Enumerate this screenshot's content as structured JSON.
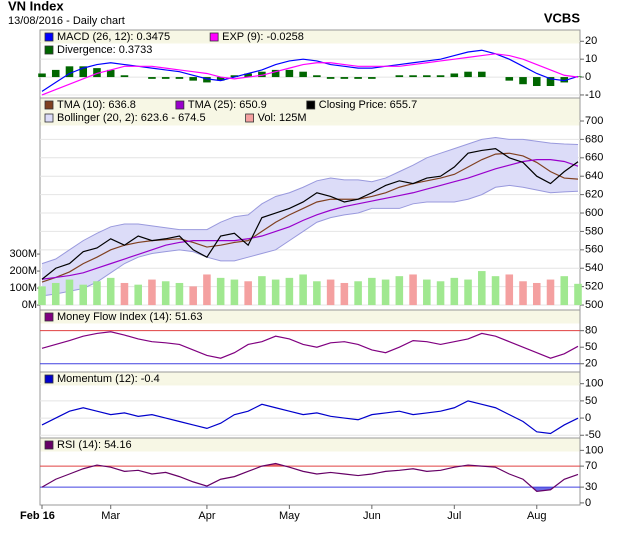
{
  "header": {
    "title": "VN Index",
    "subtitle": "13/08/2016 - Daily chart",
    "brand": "VCBS"
  },
  "chart_data": [
    {
      "type": "line",
      "ylim": [
        -11.7,
        26.3
      ],
      "yticks": [
        20,
        10,
        0,
        -10
      ],
      "grid": true,
      "series": [
        {
          "name": "MACD (26, 12): 0.3475",
          "kind": "line",
          "color": "#0000ff",
          "values": [
            -8,
            -3,
            2,
            5,
            7,
            8,
            7,
            6,
            5,
            4,
            3,
            1,
            -1,
            -2,
            0,
            2,
            4,
            7,
            9,
            10,
            9,
            7,
            6,
            5,
            5,
            6,
            7,
            8,
            9,
            10,
            12,
            14,
            15,
            13,
            10,
            6,
            2,
            -1,
            -2,
            0.3475
          ]
        },
        {
          "name": "EXP (9): -0.0258",
          "kind": "line",
          "color": "#ff00ff",
          "values": [
            -10,
            -7,
            -4,
            -1,
            2,
            4,
            6,
            6,
            6,
            5,
            4,
            3,
            2,
            0,
            -1,
            0,
            1,
            3,
            5,
            7,
            8,
            8,
            7,
            6,
            6,
            6,
            6,
            7,
            8,
            9,
            10,
            11,
            12,
            13,
            12,
            10,
            7,
            4,
            1,
            -0.0258
          ]
        },
        {
          "name": "Divergence: 0.3733",
          "kind": "bar",
          "color": "#006600",
          "values": [
            2,
            4,
            6,
            6,
            5,
            4,
            1,
            0,
            -1,
            -1,
            -1,
            -2,
            -3,
            -2,
            1,
            2,
            3,
            4,
            4,
            3,
            1,
            -1,
            -1,
            -1,
            -1,
            0,
            1,
            1,
            1,
            1,
            2,
            3,
            3,
            0,
            -2,
            -4,
            -5,
            -5,
            -3,
            0.3733
          ]
        }
      ]
    },
    {
      "type": "line",
      "ylim": [
        494.6,
        725
      ],
      "yticks": [
        500,
        520,
        540,
        560,
        580,
        600,
        620,
        640,
        660,
        680,
        700
      ],
      "grid": true,
      "y2lim": [
        -29000000,
        1218000000
      ],
      "y2ticks": [
        {
          "value": 300000000,
          "label": "300M"
        },
        {
          "value": 200000000,
          "label": "200M"
        },
        {
          "value": 100000000,
          "label": "100M"
        },
        {
          "value": 0,
          "label": "0M"
        }
      ],
      "series": [
        {
          "name": "TMA (10): 636.8",
          "kind": "line",
          "color": "#804020",
          "values": [
            525,
            530,
            536,
            545,
            552,
            560,
            565,
            568,
            570,
            571,
            572,
            568,
            563,
            565,
            568,
            570,
            580,
            590,
            598,
            605,
            612,
            615,
            615,
            615,
            618,
            622,
            628,
            632,
            635,
            638,
            642,
            650,
            658,
            664,
            665,
            662,
            655,
            645,
            638,
            636.8
          ]
        },
        {
          "name": "TMA (25): 650.9",
          "kind": "line",
          "color": "#9900cc",
          "values": [
            528,
            530,
            532,
            535,
            540,
            545,
            550,
            555,
            560,
            565,
            568,
            570,
            570,
            570,
            570,
            572,
            575,
            580,
            585,
            592,
            598,
            603,
            607,
            610,
            613,
            616,
            619,
            622,
            626,
            630,
            634,
            638,
            643,
            648,
            652,
            656,
            658,
            658,
            656,
            650.9
          ]
        },
        {
          "name": "Closing Price: 655.7",
          "kind": "line",
          "color": "#000000",
          "values": [
            528,
            540,
            545,
            558,
            562,
            572,
            565,
            575,
            570,
            572,
            575,
            560,
            552,
            575,
            578,
            565,
            595,
            600,
            605,
            612,
            622,
            618,
            612,
            615,
            622,
            630,
            635,
            632,
            638,
            640,
            650,
            665,
            668,
            670,
            660,
            655,
            640,
            632,
            645,
            655.7
          ]
        },
        {
          "name": "Bollinger (20, 2): 623.6 - 674.5",
          "kind": "band",
          "color": "#9999dd",
          "fill": "#dcdcf8",
          "upper": [
            545,
            550,
            560,
            570,
            578,
            585,
            588,
            588,
            586,
            584,
            582,
            582,
            582,
            590,
            596,
            598,
            610,
            618,
            622,
            628,
            635,
            638,
            636,
            636,
            634,
            638,
            645,
            652,
            660,
            665,
            670,
            675,
            680,
            682,
            680,
            680,
            678,
            676,
            675,
            674.5
          ],
          "lower": [
            510,
            512,
            515,
            518,
            525,
            535,
            545,
            552,
            556,
            558,
            560,
            558,
            552,
            548,
            548,
            552,
            556,
            560,
            570,
            580,
            590,
            595,
            598,
            600,
            605,
            605,
            605,
            610,
            612,
            612,
            612,
            615,
            620,
            628,
            630,
            628,
            625,
            622,
            623,
            623.6
          ]
        },
        {
          "name": "Vol: 125M",
          "kind": "volume",
          "axis": "y2",
          "color": "#f4a0a0",
          "up_color": "#a0e890",
          "down_color": "#f4a0a0",
          "values": [
            110000000,
            130000000,
            150000000,
            120000000,
            140000000,
            160000000,
            130000000,
            120000000,
            150000000,
            140000000,
            130000000,
            110000000,
            180000000,
            160000000,
            150000000,
            140000000,
            170000000,
            150000000,
            160000000,
            180000000,
            140000000,
            150000000,
            130000000,
            140000000,
            160000000,
            150000000,
            170000000,
            180000000,
            150000000,
            140000000,
            160000000,
            150000000,
            200000000,
            170000000,
            180000000,
            140000000,
            130000000,
            150000000,
            170000000,
            125000000
          ]
        }
      ]
    },
    {
      "type": "line",
      "ylim": [
        5,
        117.5
      ],
      "yticks": [
        80,
        50,
        20
      ],
      "grid": false,
      "ref_lines": [
        {
          "value": 80,
          "color": "#e04040"
        },
        {
          "value": 20,
          "color": "#4040e0"
        }
      ],
      "series": [
        {
          "name": "Money Flow Index (14): 51.63",
          "kind": "line",
          "color": "#800080",
          "values": [
            48,
            55,
            62,
            70,
            75,
            78,
            72,
            65,
            60,
            58,
            55,
            45,
            35,
            30,
            40,
            55,
            60,
            70,
            65,
            55,
            50,
            58,
            60,
            55,
            45,
            40,
            50,
            62,
            60,
            55,
            60,
            65,
            75,
            70,
            60,
            50,
            40,
            30,
            38,
            51.63
          ]
        }
      ]
    },
    {
      "type": "line",
      "ylim": [
        -58,
        134
      ],
      "yticks": [
        100,
        50,
        0,
        -50
      ],
      "grid": true,
      "series": [
        {
          "name": "Momentum (12): -0.4",
          "kind": "line",
          "color": "#0000cc",
          "values": [
            -20,
            0,
            20,
            30,
            20,
            10,
            15,
            5,
            10,
            0,
            -10,
            -20,
            -30,
            -15,
            10,
            20,
            40,
            30,
            20,
            10,
            15,
            5,
            0,
            -5,
            10,
            15,
            20,
            10,
            15,
            20,
            30,
            50,
            40,
            30,
            10,
            -10,
            -40,
            -45,
            -20,
            -0.4
          ]
        }
      ]
    },
    {
      "type": "line",
      "ylim": [
        -4,
        123.5
      ],
      "yticks": [
        100,
        70,
        30,
        0
      ],
      "grid": false,
      "ref_lines": [
        {
          "value": 70,
          "color": "#e04040",
          "fill": "#e85050"
        },
        {
          "value": 30,
          "color": "#4040e0",
          "fill": "#5050e0"
        }
      ],
      "categories": [
        "Feb 16",
        null,
        null,
        null,
        null,
        "Mar",
        null,
        null,
        null,
        null,
        null,
        null,
        "Apr",
        null,
        null,
        null,
        null,
        null,
        "May",
        null,
        null,
        null,
        null,
        null,
        "Jun",
        null,
        null,
        null,
        null,
        null,
        "Jul",
        null,
        null,
        null,
        null,
        null,
        "Aug",
        null,
        null,
        null
      ],
      "series": [
        {
          "name": "RSI (14): 54.16",
          "kind": "line",
          "color": "#660066",
          "values": [
            30,
            45,
            55,
            65,
            72,
            68,
            60,
            62,
            55,
            58,
            50,
            40,
            32,
            45,
            50,
            60,
            70,
            75,
            68,
            60,
            55,
            58,
            55,
            52,
            55,
            60,
            62,
            65,
            60,
            62,
            68,
            72,
            70,
            68,
            55,
            45,
            22,
            25,
            45,
            54.16
          ]
        }
      ]
    }
  ]
}
